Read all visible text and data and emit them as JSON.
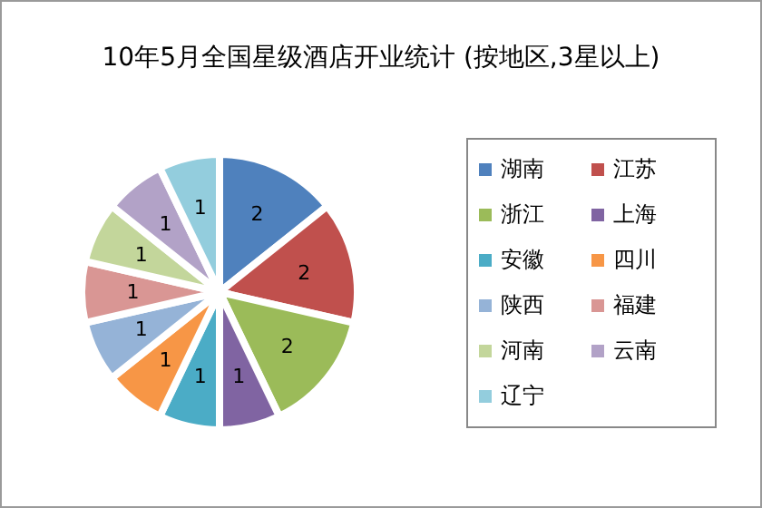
{
  "chart_data": {
    "type": "pie",
    "title": "10年5月全国星级酒店开业统计 (按地区,3星以上)",
    "categories": [
      "湖南",
      "江苏",
      "浙江",
      "上海",
      "安徽",
      "四川",
      "陕西",
      "福建",
      "河南",
      "云南",
      "辽宁"
    ],
    "values": [
      2,
      2,
      2,
      1,
      1,
      1,
      1,
      1,
      1,
      1,
      1
    ],
    "colors": [
      "#4f81bd",
      "#c0504d",
      "#9bbb59",
      "#8064a2",
      "#4bacc6",
      "#f79646",
      "#95b3d7",
      "#d99694",
      "#c3d69b",
      "#b2a2c7",
      "#93cddd"
    ],
    "data_labels": true,
    "legend": "right"
  }
}
